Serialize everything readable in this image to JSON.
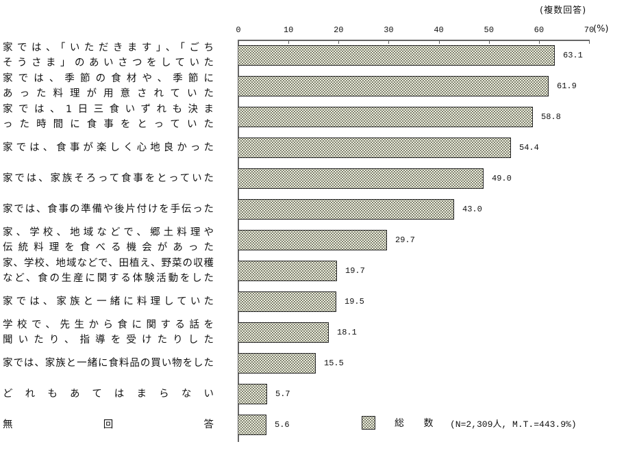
{
  "note": "(複数回答)",
  "axis": {
    "ticks": [
      "0",
      "10",
      "20",
      "30",
      "40",
      "50",
      "60",
      "70"
    ],
    "unit": "(%)"
  },
  "legend": {
    "label": "総 数",
    "sample": "(N=2,309人, M.T.=443.9%)"
  },
  "chart_data": {
    "type": "bar",
    "orientation": "horizontal",
    "title": "",
    "note": "(複数回答)",
    "xlabel": "(%)",
    "ylabel": "",
    "xlim": [
      0,
      70
    ],
    "xticks": [
      0,
      10,
      20,
      30,
      40,
      50,
      60,
      70
    ],
    "grid": false,
    "legend": {
      "position": "bottom-right",
      "entries": [
        "総 数"
      ],
      "sample_info": "(N=2,309人, M.T.=443.9%)"
    },
    "categories": [
      "家では、「いただきます」、「ごちそうさま」のあいさつをしていた",
      "家では、季節の食材や、季節にあった料理が用意されていた",
      "家では、1日三食いずれも決まった時間に食事をとっていた",
      "家では、食事が楽しく心地良かった",
      "家では、家族そろって食事をとっていた",
      "家では、食事の準備や後片付けを手伝った",
      "家、学校、地域などで、郷土料理や伝統料理を食べる機会があった",
      "家、学校、地域などで、田植え、野菜の収穫など、食の生産に関する体験活動をした",
      "家では、家族と一緒に料理していた",
      "学校で、先生から食に関する話を聞いたり、指導を受けたりした",
      "家では、家族と一緒に食料品の買い物をした",
      "どれもあてはまらない",
      "無回答"
    ],
    "series": [
      {
        "name": "総 数",
        "values": [
          63.1,
          61.9,
          58.8,
          54.4,
          49.0,
          43.0,
          29.7,
          19.7,
          19.5,
          18.1,
          15.5,
          5.7,
          5.6
        ]
      }
    ]
  },
  "rows": [
    {
      "lines": [
        "家では、「いただきます」、「ごち",
        "そうさま」のあいさつをしていた"
      ],
      "value": "63.1"
    },
    {
      "lines": [
        "家では、季節の食材や、季節に",
        "あった料理が用意されていた"
      ],
      "value": "61.9"
    },
    {
      "lines": [
        "家では、1日三食いずれも決ま",
        "った時間に食事をとっていた"
      ],
      "value": "58.8"
    },
    {
      "lines": [
        "家では、食事が楽しく心地良かった"
      ],
      "value": "54.4"
    },
    {
      "lines": [
        "家では、家族そろって食事をとっていた"
      ],
      "value": "49.0"
    },
    {
      "lines": [
        "家では、食事の準備や後片付けを手伝った"
      ],
      "value": "43.0"
    },
    {
      "lines": [
        "家、学校、地域などで、郷土料理や",
        "伝統料理を食べる機会があった"
      ],
      "value": "29.7"
    },
    {
      "lines": [
        "家、学校、地域などで、田植え、野菜の収穫",
        "など、食の生産に関する体験活動をした"
      ],
      "value": "19.7"
    },
    {
      "lines": [
        "家では、家族と一緒に料理していた"
      ],
      "value": "19.5"
    },
    {
      "lines": [
        "学校で、先生から食に関する話を",
        "聞いたり、指導を受けたりした"
      ],
      "value": "18.1"
    },
    {
      "lines": [
        "家では、家族と一緒に食料品の買い物をした"
      ],
      "value": "15.5"
    },
    {
      "lines": [
        "どれもあてはまらない"
      ],
      "value": "5.7"
    },
    {
      "lines": [
        "無回答"
      ],
      "value": "5.6"
    }
  ]
}
